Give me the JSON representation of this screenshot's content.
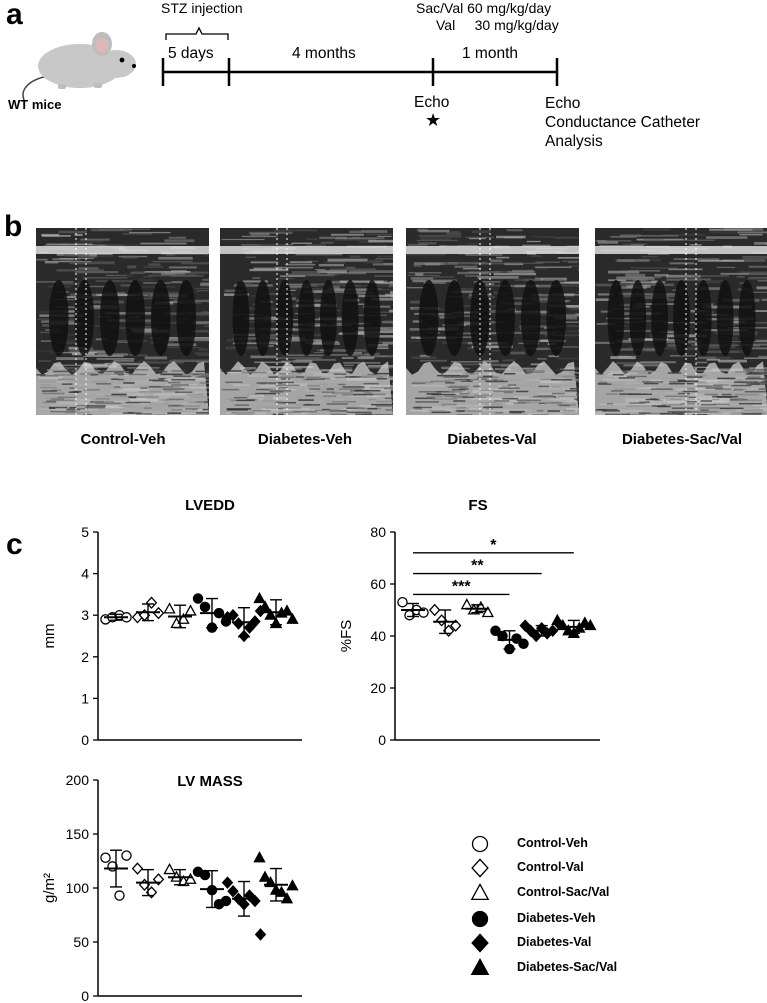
{
  "panel_a": {
    "letter": "a",
    "mouse_label": "WT mice",
    "stz_label": "STZ injection",
    "period1": "5 days",
    "period2": "4 months",
    "period3": "1 month",
    "treat_line1": "Sac/Val 60 mg/kg/day",
    "treat_line2": "Val     30 mg/kg/day",
    "echo1": "Echo",
    "star": "★",
    "echo2_line1": "Echo",
    "echo2_line2": "Conductance Catheter",
    "echo2_line3": "Analysis"
  },
  "panel_b": {
    "letter": "b",
    "labels": [
      "Control-Veh",
      "Diabetes-Veh",
      "Diabetes-Val",
      "Diabetes-Sac/Val"
    ]
  },
  "panel_c": {
    "letter": "c"
  },
  "legend": {
    "items": [
      {
        "label": "Control-Veh",
        "marker": "circle-open"
      },
      {
        "label": "Control-Val",
        "marker": "diamond-open"
      },
      {
        "label": "Control-Sac/Val",
        "marker": "triangle-open"
      },
      {
        "label": "Diabetes-Veh",
        "marker": "circle-filled"
      },
      {
        "label": "Diabetes-Val",
        "marker": "diamond-filled"
      },
      {
        "label": "Diabetes-Sac/Val",
        "marker": "triangle-filled"
      }
    ]
  },
  "chart_data": [
    {
      "type": "scatter",
      "title": "LVEDD",
      "ylabel": "mm",
      "ylim": [
        0,
        5
      ],
      "yticks": [
        0,
        1,
        2,
        3,
        4,
        5
      ],
      "groups": [
        {
          "name": "Control-Veh",
          "marker": "circle-open",
          "mean": 2.95,
          "sd": 0.07,
          "points": [
            2.9,
            2.95,
            3.0,
            2.95
          ]
        },
        {
          "name": "Control-Val",
          "marker": "diamond-open",
          "mean": 3.07,
          "sd": 0.2,
          "points": [
            2.95,
            3.0,
            3.3,
            3.05
          ]
        },
        {
          "name": "Control-Sac/Val",
          "marker": "triangle-open",
          "mean": 2.97,
          "sd": 0.27,
          "points": [
            3.15,
            2.8,
            2.9,
            3.1
          ]
        },
        {
          "name": "Diabetes-Veh",
          "marker": "circle-filled",
          "mean": 3.05,
          "sd": 0.35,
          "points": [
            3.4,
            3.2,
            2.7,
            3.05,
            2.85
          ]
        },
        {
          "name": "Diabetes-Val",
          "marker": "diamond-filled",
          "mean": 2.83,
          "sd": 0.35,
          "points": [
            2.95,
            3.0,
            2.8,
            2.5,
            2.7,
            2.85,
            3.1
          ]
        },
        {
          "name": "Diabetes-Sac/Val",
          "marker": "triangle-filled",
          "mean": 3.07,
          "sd": 0.3,
          "points": [
            3.4,
            3.2,
            3.0,
            2.8,
            3.05,
            3.1,
            2.9
          ]
        }
      ]
    },
    {
      "type": "scatter",
      "title": "FS",
      "ylabel": "%FS",
      "ylim": [
        0,
        80
      ],
      "yticks": [
        0,
        20,
        40,
        60,
        80
      ],
      "groups": [
        {
          "name": "Control-Veh",
          "marker": "circle-open",
          "mean": 50,
          "sd": 2.5,
          "points": [
            53,
            48,
            50,
            49
          ]
        },
        {
          "name": "Control-Val",
          "marker": "diamond-open",
          "mean": 45.5,
          "sd": 4.5,
          "points": [
            50,
            46,
            42,
            44
          ]
        },
        {
          "name": "Control-Sac/Val",
          "marker": "triangle-open",
          "mean": 50.5,
          "sd": 1.5,
          "points": [
            52,
            50,
            51,
            49
          ]
        },
        {
          "name": "Diabetes-Veh",
          "marker": "circle-filled",
          "mean": 38.5,
          "sd": 3.5,
          "points": [
            42,
            40,
            35,
            39,
            37
          ]
        },
        {
          "name": "Diabetes-Val",
          "marker": "diamond-filled",
          "mean": 42,
          "sd": 2.0,
          "points": [
            44,
            42,
            40,
            43,
            41,
            42,
            45
          ]
        },
        {
          "name": "Diabetes-Sac/Val",
          "marker": "triangle-filled",
          "mean": 43.5,
          "sd": 2.5,
          "points": [
            46,
            44,
            42,
            41,
            43,
            45,
            44
          ]
        }
      ],
      "annotations": [
        {
          "text": "*",
          "from_group": 0,
          "to_group": 5,
          "y": 72
        },
        {
          "text": "**",
          "from_group": 0,
          "to_group": 4,
          "y": 64
        },
        {
          "text": "***",
          "from_group": 0,
          "to_group": 3,
          "y": 56
        }
      ]
    },
    {
      "type": "scatter",
      "title": "LV MASS",
      "ylabel": "g/m²",
      "ylim": [
        0,
        200
      ],
      "yticks": [
        0,
        50,
        100,
        150,
        200
      ],
      "groups": [
        {
          "name": "Control-Veh",
          "marker": "circle-open",
          "mean": 118,
          "sd": 17,
          "points": [
            128,
            120,
            93,
            130
          ]
        },
        {
          "name": "Control-Val",
          "marker": "diamond-open",
          "mean": 105,
          "sd": 12,
          "points": [
            118,
            103,
            96,
            108
          ]
        },
        {
          "name": "Control-Sac/Val",
          "marker": "triangle-open",
          "mean": 110,
          "sd": 7,
          "points": [
            117,
            110,
            106,
            108
          ]
        },
        {
          "name": "Diabetes-Veh",
          "marker": "circle-filled",
          "mean": 99,
          "sd": 17,
          "points": [
            115,
            112,
            98,
            85,
            88
          ]
        },
        {
          "name": "Diabetes-Val",
          "marker": "diamond-filled",
          "mean": 90,
          "sd": 16,
          "points": [
            105,
            97,
            90,
            85,
            93,
            88,
            57
          ]
        },
        {
          "name": "Diabetes-Sac/Val",
          "marker": "triangle-filled",
          "mean": 103,
          "sd": 15,
          "points": [
            128,
            110,
            105,
            98,
            96,
            90,
            102
          ]
        }
      ]
    }
  ]
}
